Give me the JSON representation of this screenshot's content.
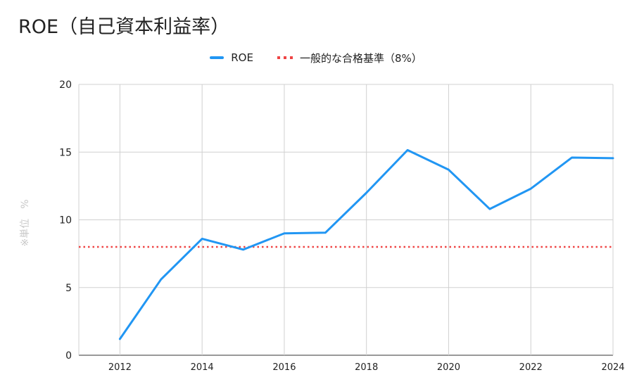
{
  "chart_data": {
    "type": "line",
    "title": "ROE（自己資本利益率）",
    "xlabel": "",
    "ylabel": "※単位　%",
    "xlim": [
      2011,
      2024
    ],
    "ylim": [
      0,
      20
    ],
    "x_ticks": [
      "2012",
      "2014",
      "2016",
      "2018",
      "2020",
      "2022",
      "2024"
    ],
    "y_ticks": [
      "0",
      "5",
      "10",
      "15",
      "20"
    ],
    "grid": true,
    "legend_position": "top-center",
    "series": [
      {
        "name": "ROE",
        "color": "#2196F3",
        "style": "solid",
        "x": [
          2012,
          2013,
          2014,
          2015,
          2016,
          2017,
          2018,
          2019,
          2020,
          2021,
          2022,
          2023,
          2024
        ],
        "values": [
          1.2,
          5.6,
          8.6,
          7.8,
          9.0,
          9.05,
          12.0,
          15.15,
          13.7,
          10.8,
          12.3,
          14.6,
          14.55
        ]
      },
      {
        "name": "一般的な合格基準（8%）",
        "color": "#EF4444",
        "style": "dotted",
        "x": [
          2011,
          2024
        ],
        "values": [
          8,
          8
        ]
      }
    ]
  }
}
